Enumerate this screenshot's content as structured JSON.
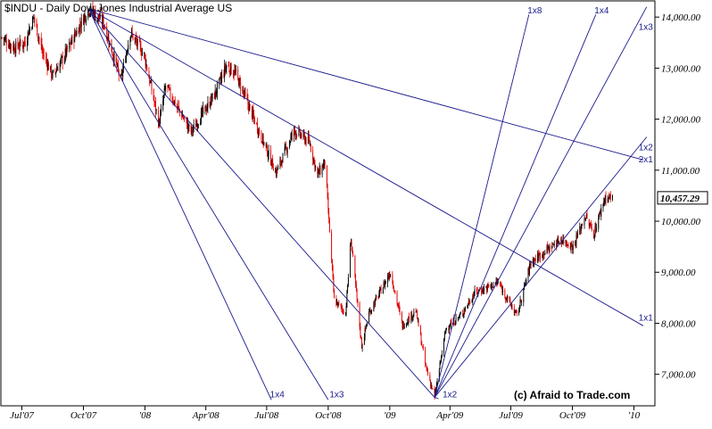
{
  "chart_data": {
    "type": "candlestick",
    "title": "$INDU - Daily  Dow Jones Industrial Average  US",
    "watermark": "(c) Afraid to Trade.com",
    "last_price": 10457.29,
    "last_price_label": "10,457.29",
    "y_axis": {
      "position": "right",
      "ylim": [
        6400,
        14300
      ],
      "ticks": [
        {
          "value": 7000,
          "label": "7,000.00"
        },
        {
          "value": 8000,
          "label": "8,000.00"
        },
        {
          "value": 9000,
          "label": "9,000.00"
        },
        {
          "value": 10000,
          "label": "10,000.00"
        },
        {
          "value": 11000,
          "label": "11,000.00"
        },
        {
          "value": 12000,
          "label": "12,000.00"
        },
        {
          "value": 13000,
          "label": "13,000.00"
        },
        {
          "value": 14000,
          "label": "14,000.00"
        }
      ]
    },
    "x_axis": {
      "xlim": [
        "2007-06-01",
        "2010-01-31"
      ],
      "ticks": [
        {
          "date": "2007-07-01",
          "label": "Jul'07"
        },
        {
          "date": "2007-10-01",
          "label": "Oct'07"
        },
        {
          "date": "2008-01-01",
          "label": "'08"
        },
        {
          "date": "2008-04-01",
          "label": "Apr'08"
        },
        {
          "date": "2008-07-01",
          "label": "Jul'08"
        },
        {
          "date": "2008-10-01",
          "label": "Oct'08"
        },
        {
          "date": "2009-01-01",
          "label": "'09"
        },
        {
          "date": "2009-04-01",
          "label": "Apr'09"
        },
        {
          "date": "2009-07-01",
          "label": "Jul'09"
        },
        {
          "date": "2009-10-01",
          "label": "Oct'09"
        },
        {
          "date": "2010-01-01",
          "label": "'10"
        }
      ]
    },
    "price_path": [
      [
        "2007-06-01",
        13600
      ],
      [
        "2007-06-20",
        13400
      ],
      [
        "2007-07-05",
        13500
      ],
      [
        "2007-07-19",
        14000
      ],
      [
        "2007-08-01",
        13300
      ],
      [
        "2007-08-16",
        12850
      ],
      [
        "2007-09-05",
        13300
      ],
      [
        "2007-09-28",
        13900
      ],
      [
        "2007-10-09",
        14164
      ],
      [
        "2007-10-31",
        13900
      ],
      [
        "2007-11-26",
        12750
      ],
      [
        "2007-12-10",
        13700
      ],
      [
        "2007-12-31",
        13250
      ],
      [
        "2008-01-22",
        11900
      ],
      [
        "2008-02-01",
        12650
      ],
      [
        "2008-03-10",
        11750
      ],
      [
        "2008-04-15",
        12500
      ],
      [
        "2008-05-02",
        13050
      ],
      [
        "2008-05-15",
        12900
      ],
      [
        "2008-06-06",
        12200
      ],
      [
        "2008-07-15",
        10950
      ],
      [
        "2008-08-11",
        11780
      ],
      [
        "2008-09-03",
        11550
      ],
      [
        "2008-09-15",
        10900
      ],
      [
        "2008-09-26",
        11150
      ],
      [
        "2008-10-10",
        8450
      ],
      [
        "2008-10-27",
        8200
      ],
      [
        "2008-11-04",
        9650
      ],
      [
        "2008-11-20",
        7550
      ],
      [
        "2008-12-01",
        8200
      ],
      [
        "2009-01-02",
        9000
      ],
      [
        "2009-01-20",
        7950
      ],
      [
        "2009-02-09",
        8250
      ],
      [
        "2009-02-23",
        7200
      ],
      [
        "2009-03-09",
        6547
      ],
      [
        "2009-03-26",
        7900
      ],
      [
        "2009-04-17",
        8150
      ],
      [
        "2009-05-08",
        8600
      ],
      [
        "2009-06-12",
        8800
      ],
      [
        "2009-07-10",
        8150
      ],
      [
        "2009-07-31",
        9200
      ],
      [
        "2009-08-20",
        9400
      ],
      [
        "2009-09-14",
        9650
      ],
      [
        "2009-10-02",
        9500
      ],
      [
        "2009-10-20",
        10100
      ],
      [
        "2009-11-02",
        9750
      ],
      [
        "2009-11-18",
        10450
      ],
      [
        "2009-11-30",
        10457
      ]
    ],
    "gann_fans": [
      {
        "name": "top-fan",
        "origin": [
          "2007-10-09",
          14164
        ],
        "lines": [
          {
            "label": "1x4",
            "end": [
              "2008-07-08",
              6500
            ]
          },
          {
            "label": "1x3",
            "end": [
              "2008-10-01",
              6500
            ]
          },
          {
            "label": "1x1",
            "end": [
              "2009-03-09",
              6547
            ]
          },
          {
            "label": "1x1",
            "end": [
              "2010-01-15",
              7950
            ]
          },
          {
            "label": "2x1",
            "end": [
              "2010-01-15",
              11200
            ]
          }
        ]
      },
      {
        "name": "bottom-fan",
        "origin": [
          "2009-03-09",
          6547
        ],
        "lines": [
          {
            "label": "1x8",
            "end": [
              "2009-07-28",
              14050
            ]
          },
          {
            "label": "1x4",
            "end": [
              "2009-11-05",
              14050
            ]
          },
          {
            "label": "1x3",
            "end": [
              "2010-01-20",
              14200
            ]
          },
          {
            "label": "1x2",
            "end": [
              "2010-01-20",
              11650
            ]
          },
          {
            "label": "1x2",
            "end": [
              "2009-03-15",
              6520
            ]
          }
        ]
      }
    ],
    "gann_labels": [
      {
        "text": "1x4",
        "at": [
          "2008-07-06",
          6500
        ]
      },
      {
        "text": "1x3",
        "at": [
          "2008-10-03",
          6500
        ]
      },
      {
        "text": "1x2",
        "at": [
          "2009-03-21",
          6500
        ]
      },
      {
        "text": "1x1",
        "at": [
          "2010-01-08",
          8000
        ]
      },
      {
        "text": "2x1",
        "at": [
          "2010-01-08",
          11100
        ]
      },
      {
        "text": "1x2",
        "at": [
          "2010-01-08",
          11340
        ]
      },
      {
        "text": "1x8",
        "at": [
          "2009-07-26",
          14020
        ]
      },
      {
        "text": "1x4",
        "at": [
          "2009-11-03",
          14020
        ]
      },
      {
        "text": "1x3",
        "at": [
          "2010-01-08",
          13700
        ]
      }
    ],
    "colors": {
      "up": "#000000",
      "down": "#e00000",
      "gann": "#1a1a8c",
      "axis": "#000000",
      "background": "#ffffff"
    }
  }
}
